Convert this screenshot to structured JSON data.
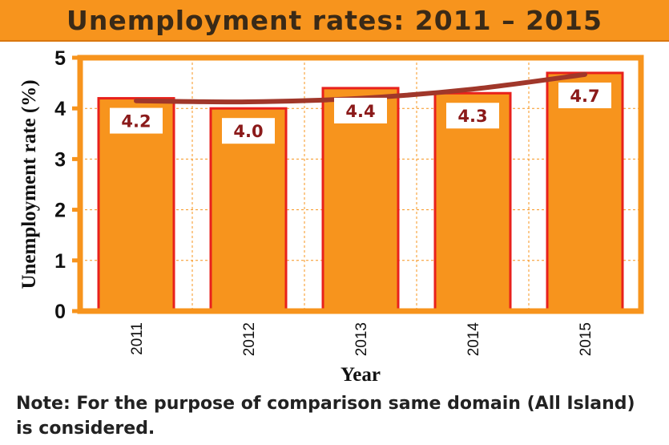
{
  "title": "Unemployment rates: 2011 – 2015",
  "note": "Note: For the purpose of comparison same domain (All Island) is considered.",
  "colors": {
    "title_bg": "#f7941d",
    "bar_fill": "#f7941d",
    "bar_border": "#e8211c",
    "frame": "#f7941d",
    "trend_line": "#a0372a",
    "label_text": "#8b1a1a"
  },
  "chart_data": {
    "type": "bar",
    "categories": [
      "2011",
      "2012",
      "2013",
      "2014",
      "2015"
    ],
    "values": [
      4.2,
      4.0,
      4.4,
      4.3,
      4.7
    ],
    "data_labels": [
      "4.2",
      "4.0",
      "4.4",
      "4.3",
      "4.7"
    ],
    "xlabel": "Year",
    "ylabel": "Unemployment rate (%)",
    "ylim": [
      0,
      5
    ],
    "yticks": [
      "0",
      "1",
      "2",
      "3",
      "4",
      "5"
    ],
    "grid": true,
    "trend": {
      "type": "polynomial",
      "values": [
        4.15,
        4.13,
        4.2,
        4.38,
        4.67
      ]
    }
  }
}
